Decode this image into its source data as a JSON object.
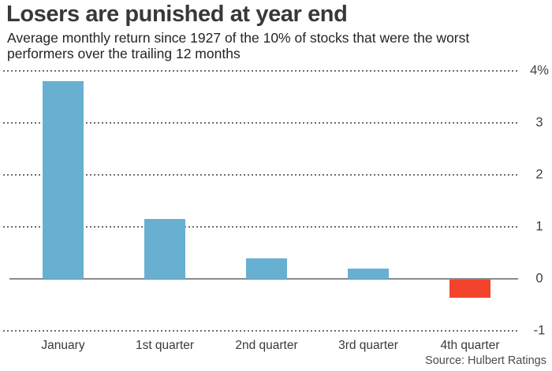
{
  "header": {
    "title": "Losers are punished at year end",
    "subtitle_line1": "Average monthly return since 1927 of the 10% of stocks that were the worst",
    "subtitle_line2": "performers over the trailing 12 months"
  },
  "source": "Source: Hulbert Ratings",
  "colors": {
    "bar_positive": "#68b0d2",
    "bar_negative": "#f4432c",
    "zero_axis_line": "#8a8a8a",
    "gridline_dots": "#6e6e6e",
    "title_text": "#383838",
    "subtitle_text": "#242424",
    "tick_text": "#3f3f3f"
  },
  "chart_data": {
    "type": "bar",
    "title": "Losers are punished at year end",
    "subtitle": "Average monthly return since 1927 of the 10% of stocks that were the worst performers over the trailing 12 months",
    "categories": [
      "January",
      "1st quarter",
      "2nd quarter",
      "3rd quarter",
      "4th quarter"
    ],
    "values": [
      3.8,
      1.15,
      0.4,
      0.2,
      -0.35
    ],
    "xlabel": "",
    "ylabel": "",
    "ylim": [
      -1,
      4
    ],
    "yticks": [
      4,
      3,
      2,
      1,
      0,
      -1
    ],
    "ytick_labels": [
      "4%",
      "3",
      "2",
      "1",
      "0",
      "-1"
    ],
    "ytick_side": "right",
    "grid": "horizontal dotted, solid line at zero",
    "legend": "none",
    "negative_bar_color": "#f4432c",
    "positive_bar_color": "#68b0d2",
    "source": "Source: Hulbert Ratings"
  }
}
